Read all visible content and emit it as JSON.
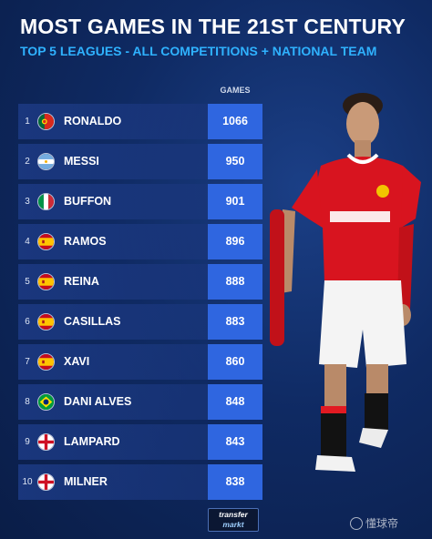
{
  "chart_data": {
    "type": "table",
    "title": "MOST GAMES IN THE 21ST CENTURY",
    "subtitle": "TOP 5 LEAGUES - ALL COMPETITIONS + NATIONAL TEAM",
    "value_header": "GAMES",
    "rows": [
      {
        "rank": "1",
        "name": "RONALDO",
        "games": 1066,
        "flag": "portugal-flag-icon"
      },
      {
        "rank": "2",
        "name": "MESSI",
        "games": 950,
        "flag": "argentina-flag-icon"
      },
      {
        "rank": "3",
        "name": "BUFFON",
        "games": 901,
        "flag": "italy-flag-icon"
      },
      {
        "rank": "4",
        "name": "RAMOS",
        "games": 896,
        "flag": "spain-flag-icon"
      },
      {
        "rank": "5",
        "name": "REINA",
        "games": 888,
        "flag": "spain-flag-icon"
      },
      {
        "rank": "6",
        "name": "CASILLAS",
        "games": 883,
        "flag": "spain-flag-icon"
      },
      {
        "rank": "7",
        "name": "XAVI",
        "games": 860,
        "flag": "spain-flag-icon"
      },
      {
        "rank": "8",
        "name": "DANI ALVES",
        "games": 848,
        "flag": "brazil-flag-icon"
      },
      {
        "rank": "9",
        "name": "LAMPARD",
        "games": 843,
        "flag": "england-flag-icon"
      },
      {
        "rank": "10",
        "name": "MILNER",
        "games": 838,
        "flag": "england-flag-icon"
      }
    ]
  },
  "branding": {
    "logo_line1": "transfer",
    "logo_line2": "markt",
    "watermark": "懂球帝",
    "watermark_icon": "ball-icon"
  },
  "colors": {
    "background": "#0f2a63",
    "row_bar": "#1c3a84",
    "value_box": "#2f66e0",
    "subtitle": "#2fb2ff"
  }
}
